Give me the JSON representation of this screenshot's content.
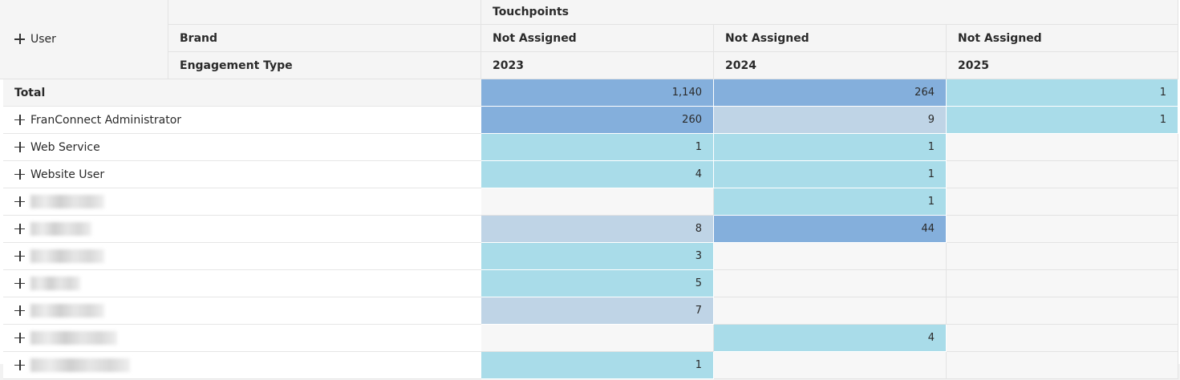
{
  "pivot": {
    "column_dimension": "Touchpoints",
    "row_dimension": "User",
    "header_fields": [
      "Brand",
      "Engagement Type"
    ],
    "columns": [
      {
        "brand": "Not Assigned",
        "engagement_type": "2023"
      },
      {
        "brand": "Not Assigned",
        "engagement_type": "2024"
      },
      {
        "brand": "Not Assigned",
        "engagement_type": "2025"
      }
    ],
    "rows": [
      {
        "label": "Total",
        "redacted": false,
        "expandable": false,
        "values": [
          "1,140",
          "264",
          "1"
        ],
        "shades": [
          "dark",
          "dark",
          "light"
        ]
      },
      {
        "label": "FranConnect Administrator",
        "redacted": false,
        "expandable": true,
        "values": [
          "260",
          "9",
          "1"
        ],
        "shades": [
          "dark",
          "pale",
          "light"
        ]
      },
      {
        "label": "Web Service",
        "redacted": false,
        "expandable": true,
        "values": [
          "1",
          "1",
          ""
        ],
        "shades": [
          "light",
          "light",
          "empty"
        ]
      },
      {
        "label": "Website User",
        "redacted": false,
        "expandable": true,
        "values": [
          "4",
          "1",
          ""
        ],
        "shades": [
          "light",
          "light",
          "empty"
        ]
      },
      {
        "label": "",
        "redacted": true,
        "expandable": true,
        "values": [
          "",
          "1",
          ""
        ],
        "shades": [
          "empty",
          "light",
          "empty"
        ]
      },
      {
        "label": "",
        "redacted": true,
        "expandable": true,
        "values": [
          "8",
          "44",
          ""
        ],
        "shades": [
          "pale",
          "dark",
          "empty"
        ]
      },
      {
        "label": "",
        "redacted": true,
        "expandable": true,
        "values": [
          "3",
          "",
          ""
        ],
        "shades": [
          "light",
          "empty",
          "empty"
        ]
      },
      {
        "label": "",
        "redacted": true,
        "expandable": true,
        "values": [
          "5",
          "",
          ""
        ],
        "shades": [
          "light",
          "empty",
          "empty"
        ]
      },
      {
        "label": "",
        "redacted": true,
        "expandable": true,
        "values": [
          "7",
          "",
          ""
        ],
        "shades": [
          "pale",
          "empty",
          "empty"
        ]
      },
      {
        "label": "",
        "redacted": true,
        "expandable": true,
        "values": [
          "",
          "4",
          ""
        ],
        "shades": [
          "empty",
          "light",
          "empty"
        ]
      },
      {
        "label": "",
        "redacted": true,
        "expandable": true,
        "values": [
          "1",
          "",
          ""
        ],
        "shades": [
          "light",
          "empty",
          "empty"
        ]
      }
    ],
    "colors": {
      "dark": "#84afdc",
      "light": "#a9dce9",
      "pale": "#bfd4e6",
      "empty": "#f7f7f7",
      "header_bg": "#f5f5f5"
    }
  }
}
